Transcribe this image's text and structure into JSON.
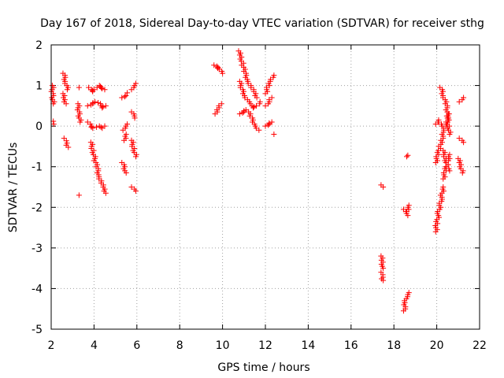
{
  "chart_data": {
    "type": "scatter",
    "title": "Day 167 of 2018, Sidereal Day-to-day VTEC variation (SDTVAR) for receiver sthg",
    "xlabel": "GPS time / hours",
    "ylabel": "SDTVAR / TECUs",
    "xlim": [
      2,
      22
    ],
    "ylim": [
      -5,
      2
    ],
    "x_ticks": [
      2,
      4,
      6,
      8,
      10,
      12,
      14,
      16,
      18,
      20,
      22
    ],
    "y_ticks": [
      -5,
      -4,
      -3,
      -2,
      -1,
      0,
      1,
      2
    ],
    "grid": true,
    "marker": "+",
    "series_color": "#ff0000",
    "series": [
      {
        "name": "SDTVAR",
        "segments": [
          {
            "x": [
              2.05,
              2.07,
              2.1
            ],
            "y": [
              1.0,
              0.75,
              0.55
            ]
          },
          {
            "x": [
              2.1,
              2.12
            ],
            "y": [
              0.12,
              0.05
            ]
          },
          {
            "x": [
              2.55,
              2.62,
              2.7,
              2.75
            ],
            "y": [
              1.3,
              1.2,
              1.05,
              0.9
            ]
          },
          {
            "x": [
              2.55,
              2.6,
              2.7
            ],
            "y": [
              0.8,
              0.65,
              0.55
            ]
          },
          {
            "x": [
              2.6,
              2.7,
              2.8
            ],
            "y": [
              -0.3,
              -0.42,
              -0.52
            ]
          },
          {
            "x": [
              3.25,
              3.3,
              3.35
            ],
            "y": [
              0.55,
              0.3,
              0.1
            ]
          },
          {
            "x": [
              3.3
            ],
            "y": [
              0.95
            ]
          },
          {
            "x": [
              3.3
            ],
            "y": [
              -1.7
            ]
          },
          {
            "x": [
              3.75,
              3.9,
              4.05,
              4.2,
              4.35,
              4.5
            ],
            "y": [
              0.95,
              0.85,
              0.9,
              1.0,
              0.95,
              0.9
            ]
          },
          {
            "x": [
              3.7,
              3.9,
              4.1,
              4.25,
              4.4,
              4.55
            ],
            "y": [
              0.5,
              0.55,
              0.6,
              0.55,
              0.45,
              0.5
            ]
          },
          {
            "x": [
              3.7,
              3.85,
              4.0,
              4.2,
              4.4,
              4.5
            ],
            "y": [
              0.1,
              0.0,
              -0.05,
              0.0,
              -0.05,
              0.0
            ]
          },
          {
            "x": [
              3.85,
              3.95,
              4.05,
              4.15,
              4.25,
              4.35,
              4.45,
              4.55
            ],
            "y": [
              -0.4,
              -0.6,
              -0.85,
              -1.05,
              -1.25,
              -1.4,
              -1.55,
              -1.65
            ]
          },
          {
            "x": [
              5.3,
              5.45,
              5.55
            ],
            "y": [
              0.7,
              0.75,
              0.82
            ]
          },
          {
            "x": [
              5.35,
              5.45,
              5.55
            ],
            "y": [
              -0.1,
              0.0,
              0.05
            ]
          },
          {
            "x": [
              5.3,
              5.4,
              5.5
            ],
            "y": [
              -0.9,
              -1.0,
              -1.15
            ]
          },
          {
            "x": [
              5.4,
              5.5
            ],
            "y": [
              -0.35,
              -0.2
            ]
          },
          {
            "x": [
              5.75,
              5.85,
              5.95
            ],
            "y": [
              0.9,
              1.0,
              1.05
            ]
          },
          {
            "x": [
              5.75,
              5.85,
              5.9
            ],
            "y": [
              0.35,
              0.25,
              0.2
            ]
          },
          {
            "x": [
              5.75,
              5.85,
              5.95
            ],
            "y": [
              -0.35,
              -0.55,
              -0.75
            ]
          },
          {
            "x": [
              5.75,
              5.85,
              5.95
            ],
            "y": [
              -1.5,
              -1.55,
              -1.6
            ]
          },
          {
            "x": [
              9.6,
              9.75,
              9.9,
              10.0
            ],
            "y": [
              1.5,
              1.45,
              1.4,
              1.3
            ]
          },
          {
            "x": [
              9.65,
              9.8,
              9.95
            ],
            "y": [
              0.3,
              0.45,
              0.55
            ]
          },
          {
            "x": [
              10.75,
              10.85,
              10.95,
              11.05,
              11.2,
              11.35,
              11.5,
              11.6
            ],
            "y": [
              1.85,
              1.7,
              1.5,
              1.3,
              1.1,
              0.95,
              0.8,
              0.7
            ]
          },
          {
            "x": [
              10.8,
              10.95,
              11.1,
              11.25,
              11.45,
              11.6,
              11.75
            ],
            "y": [
              1.1,
              0.85,
              0.7,
              0.55,
              0.45,
              0.5,
              0.6
            ]
          },
          {
            "x": [
              10.8,
              10.95,
              11.15,
              11.35,
              11.55,
              11.7
            ],
            "y": [
              0.3,
              0.35,
              0.4,
              0.2,
              0.0,
              -0.1
            ]
          },
          {
            "x": [
              12.0,
              12.15,
              12.3,
              12.4
            ],
            "y": [
              0.8,
              1.0,
              1.15,
              1.25
            ]
          },
          {
            "x": [
              12.0,
              12.15,
              12.3
            ],
            "y": [
              0.5,
              0.6,
              0.7
            ]
          },
          {
            "x": [
              12.0,
              12.15,
              12.3
            ],
            "y": [
              0.0,
              0.05,
              0.1
            ]
          },
          {
            "x": [
              12.4
            ],
            "y": [
              -0.2
            ]
          },
          {
            "x": [
              17.4,
              17.5
            ],
            "y": [
              -1.45,
              -1.5
            ]
          },
          {
            "x": [
              17.4,
              17.45,
              17.5
            ],
            "y": [
              -3.2,
              -3.35,
              -3.5
            ]
          },
          {
            "x": [
              17.4,
              17.45,
              17.5
            ],
            "y": [
              -3.6,
              -3.72,
              -3.8
            ]
          },
          {
            "x": [
              18.45,
              18.55,
              18.65
            ],
            "y": [
              -2.05,
              -2.15,
              -2.2
            ]
          },
          {
            "x": [
              18.6,
              18.7
            ],
            "y": [
              -2.1,
              -1.95
            ]
          },
          {
            "x": [
              18.6,
              18.65
            ],
            "y": [
              -0.75,
              -0.72
            ]
          },
          {
            "x": [
              18.45,
              18.5,
              18.55,
              18.6,
              18.7
            ],
            "y": [
              -4.55,
              -4.45,
              -4.3,
              -4.15,
              -4.1
            ]
          },
          {
            "x": [
              19.95,
              20.0,
              20.1,
              20.2,
              20.3
            ],
            "y": [
              -2.6,
              -2.4,
              -2.1,
              -1.8,
              -1.5
            ]
          },
          {
            "x": [
              20.3,
              20.4,
              20.5,
              20.6
            ],
            "y": [
              -1.3,
              -1.1,
              -0.9,
              -0.7
            ]
          },
          {
            "x": [
              19.95,
              20.05,
              20.15,
              20.25,
              20.35,
              20.45,
              20.55
            ],
            "y": [
              -0.9,
              -0.7,
              -0.5,
              -0.3,
              -0.1,
              0.1,
              0.3
            ]
          },
          {
            "x": [
              19.95,
              20.05,
              20.15,
              20.25
            ],
            "y": [
              0.05,
              0.15,
              0.1,
              0.0
            ]
          },
          {
            "x": [
              20.15,
              20.25,
              20.35,
              20.45,
              20.55
            ],
            "y": [
              0.95,
              0.85,
              0.7,
              0.5,
              0.2
            ]
          },
          {
            "x": [
              20.3,
              20.4,
              20.5,
              20.6
            ],
            "y": [
              -0.6,
              -0.8,
              -1.0,
              -1.1
            ]
          },
          {
            "x": [
              20.5,
              20.55,
              20.6
            ],
            "y": [
              0.2,
              0.0,
              -0.2
            ]
          },
          {
            "x": [
              21.05,
              21.15,
              21.25
            ],
            "y": [
              0.6,
              0.65,
              0.7
            ]
          },
          {
            "x": [
              21.05,
              21.15,
              21.25
            ],
            "y": [
              -0.3,
              -0.35,
              -0.4
            ]
          },
          {
            "x": [
              21.0,
              21.1,
              21.2
            ],
            "y": [
              -0.8,
              -0.95,
              -1.15
            ]
          }
        ]
      }
    ]
  }
}
